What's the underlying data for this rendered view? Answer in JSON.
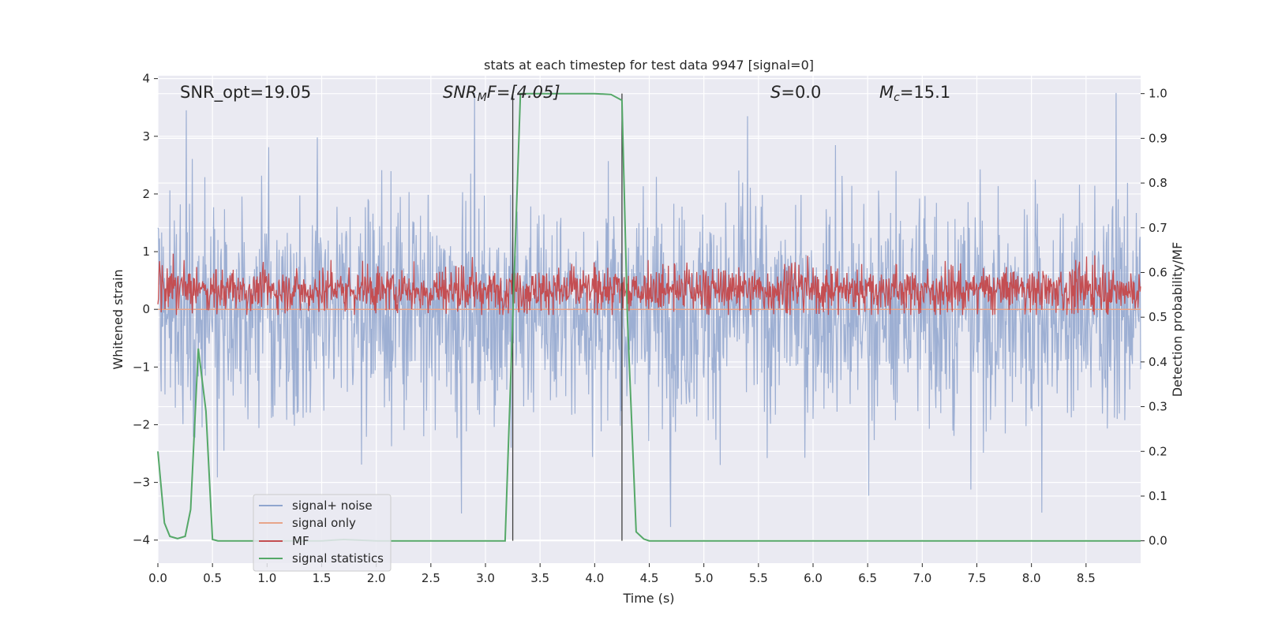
{
  "chart_data": {
    "type": "line",
    "title": "stats at each timestep for test data 9947 [signal=0]",
    "xlabel": "Time (s)",
    "ylabel": "Whitened strain",
    "ylabel_right": "Detection probability/MF",
    "xlim": [
      0.0,
      9.0
    ],
    "ylim": [
      -4.4,
      4.05
    ],
    "ylim_right": [
      -0.05,
      1.04
    ],
    "xticks": [
      "0.0",
      "0.5",
      "1.0",
      "1.5",
      "2.0",
      "2.5",
      "3.0",
      "3.5",
      "4.0",
      "4.5",
      "5.0",
      "5.5",
      "6.0",
      "6.5",
      "7.0",
      "7.5",
      "8.0",
      "8.5"
    ],
    "yticks": [
      "4",
      "3",
      "2",
      "1",
      "0",
      "−1",
      "−2",
      "−3",
      "−4"
    ],
    "yticks_right": [
      "1.0",
      "0.9",
      "0.8",
      "0.7",
      "0.6",
      "0.5",
      "0.4",
      "0.3",
      "0.2",
      "0.1",
      "0.0"
    ],
    "annotations": {
      "snr_opt": "SNR_opt=19.05",
      "snr_mf_name": "SNR",
      "snr_mf_sub": "M",
      "snr_mf_rest": "F=[4.05]",
      "s_name": "S",
      "s_rest": "=0.0",
      "mc_name": "M",
      "mc_sub": "c",
      "mc_rest": "=15.1"
    },
    "vlines": [
      3.25,
      4.25
    ],
    "series": [
      {
        "name": "signal+ noise",
        "color": "#8fa5ce",
        "description": "whitened noise, roughly ±2 with spikes to ±4"
      },
      {
        "name": "signal only",
        "color": "#e8a58a",
        "values_note": "zero throughout"
      },
      {
        "name": "MF",
        "color": "#c44e52",
        "axis": "right",
        "description": "matched filter output ~0.5–0.62"
      },
      {
        "name": "signal statistics",
        "color": "#55a868",
        "axis": "right",
        "x": [
          0.0,
          0.06,
          0.11,
          0.18,
          0.25,
          0.3,
          0.37,
          0.44,
          0.5,
          0.55,
          0.7,
          1.0,
          1.5,
          1.7,
          2.0,
          2.5,
          3.0,
          3.18,
          3.25,
          3.32,
          3.4,
          3.6,
          4.0,
          4.15,
          4.25,
          4.3,
          4.38,
          4.45,
          4.5,
          5.0,
          6.0,
          7.0,
          8.0,
          9.0
        ],
        "values": [
          0.2,
          0.04,
          0.01,
          0.005,
          0.01,
          0.07,
          0.43,
          0.29,
          0.003,
          0.0,
          0.0,
          0.0,
          0.0,
          0.003,
          0.0,
          0.0,
          0.0,
          0.0,
          0.5,
          1.0,
          1.0,
          1.0,
          1.0,
          0.998,
          0.985,
          0.5,
          0.02,
          0.004,
          0.0,
          0.0,
          0.0,
          0.0,
          0.0,
          0.0
        ]
      }
    ],
    "legend": {
      "position": "lower-left",
      "entries": [
        {
          "label": "signal+ noise",
          "color": "#8fa5ce"
        },
        {
          "label": "signal only",
          "color": "#e8a58a"
        },
        {
          "label": "MF",
          "color": "#c44e52"
        },
        {
          "label": "signal statistics",
          "color": "#55a868"
        }
      ]
    },
    "colors": {
      "axes_bg": "#eaeaf2",
      "grid": "#ffffff",
      "vline": "#404040"
    }
  }
}
